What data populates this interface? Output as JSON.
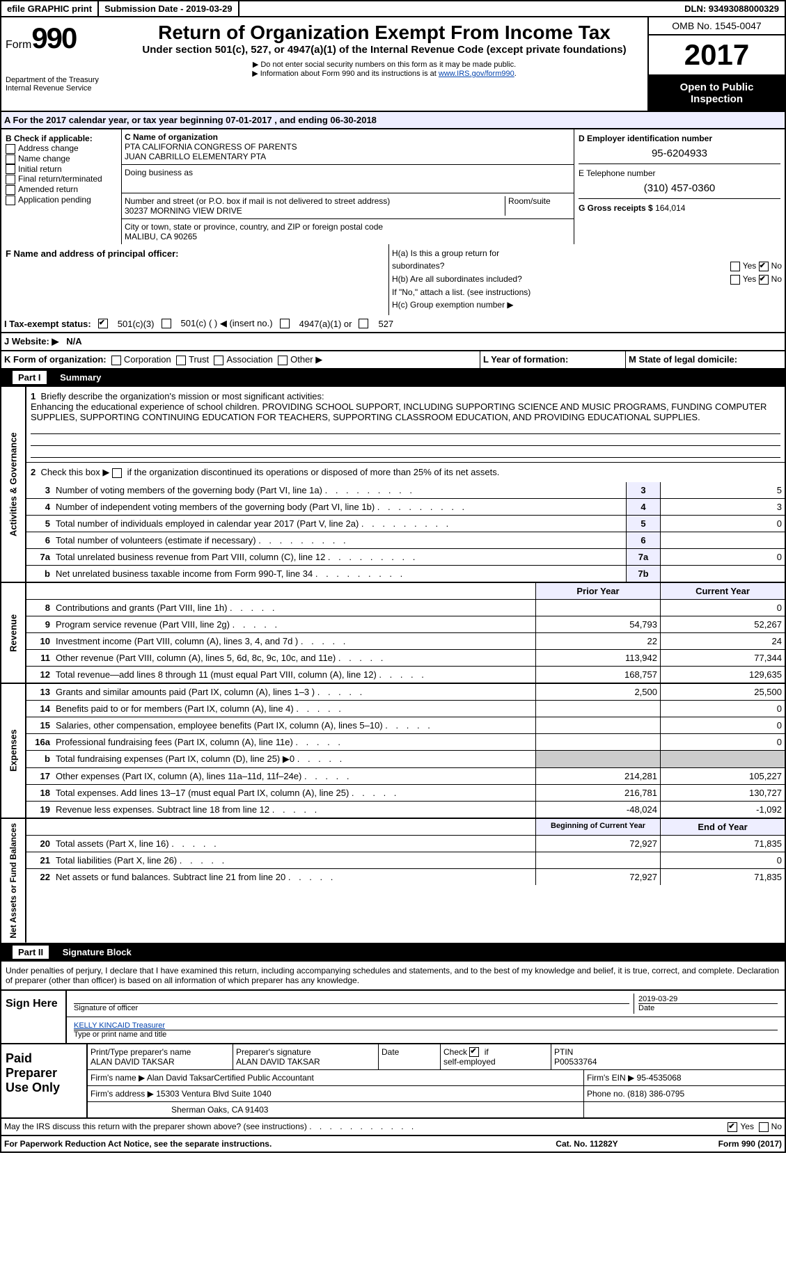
{
  "topbar": {
    "efile": "efile GRAPHIC print",
    "submission": "Submission Date - 2019-03-29",
    "dln": "DLN: 93493088000329"
  },
  "header": {
    "form": "Form",
    "num": "990",
    "dept": "Department of the Treasury",
    "irs": "Internal Revenue Service",
    "title": "Return of Organization Exempt From Income Tax",
    "subtitle": "Under section 501(c), 527, or 4947(a)(1) of the Internal Revenue Code (except private foundations)",
    "note1": "▶ Do not enter social security numbers on this form as it may be made public.",
    "note2": "▶ Information about Form 990 and its instructions is at ",
    "link": "www.IRS.gov/form990",
    "omb": "OMB No. 1545-0047",
    "year": "2017",
    "open": "Open to Public Inspection"
  },
  "sectionA": "A   For the 2017 calendar year, or tax year beginning 07-01-2017    , and ending 06-30-2018",
  "colB": {
    "label": "B Check if applicable:",
    "items": [
      "Address change",
      "Name change",
      "Initial return",
      "Final return/terminated",
      "Amended return",
      "Application pending"
    ]
  },
  "colC": {
    "nameLabel": "C Name of organization",
    "name1": "PTA CALIFORNIA CONGRESS OF PARENTS",
    "name2": "JUAN CABRILLO ELEMENTARY PTA",
    "dba": "Doing business as",
    "addrLabel": "Number and street (or P.O. box if mail is not delivered to street address)",
    "addr": "30237 MORNING VIEW DRIVE",
    "roomLabel": "Room/suite",
    "cityLabel": "City or town, state or province, country, and ZIP or foreign postal code",
    "city": "MALIBU, CA  90265"
  },
  "colD": {
    "einLabel": "D Employer identification number",
    "ein": "95-6204933",
    "telLabel": "E Telephone number",
    "tel": "(310) 457-0360",
    "grossLabel": "G Gross receipts $",
    "gross": "164,014"
  },
  "F": {
    "label": "F Name and address of principal officer:"
  },
  "H": {
    "a": "H(a)  Is this a group return for",
    "a2": "subordinates?",
    "b": "H(b)  Are all subordinates included?",
    "bnote": "If \"No,\" attach a list. (see instructions)",
    "c": "H(c)  Group exemption number ▶",
    "yes": "Yes",
    "no": "No"
  },
  "I": {
    "label": "I  Tax-exempt status:",
    "opts": [
      "501(c)(3)",
      "501(c) (   ) ◀ (insert no.)",
      "4947(a)(1) or",
      "527"
    ]
  },
  "J": {
    "label": "J  Website: ▶",
    "val": "N/A"
  },
  "K": {
    "label": "K Form of organization:",
    "opts": [
      "Corporation",
      "Trust",
      "Association",
      "Other ▶"
    ],
    "L": "L Year of formation:",
    "M": "M State of legal domicile:"
  },
  "part1": {
    "hdr": "Part I",
    "title": "Summary"
  },
  "sum1": {
    "sidelabel": "Activities & Governance",
    "l1": "Briefly describe the organization's mission or most significant activities:",
    "mission": "Enhancing the educational experience of school children. PROVIDING SCHOOL SUPPORT, INCLUDING SUPPORTING SCIENCE AND MUSIC PROGRAMS, FUNDING COMPUTER SUPPLIES, SUPPORTING CONTINUING EDUCATION FOR TEACHERS, SUPPORTING CLASSROOM EDUCATION, AND PROVIDING EDUCATIONAL SUPPLIES.",
    "l2": "Check this box ▶        if the organization discontinued its operations or disposed of more than 25% of its net assets.",
    "rows": [
      {
        "n": "3",
        "d": "Number of voting members of the governing body (Part VI, line 1a)",
        "lab": "3",
        "v": "5"
      },
      {
        "n": "4",
        "d": "Number of independent voting members of the governing body (Part VI, line 1b)",
        "lab": "4",
        "v": "3"
      },
      {
        "n": "5",
        "d": "Total number of individuals employed in calendar year 2017 (Part V, line 2a)",
        "lab": "5",
        "v": "0"
      },
      {
        "n": "6",
        "d": "Total number of volunteers (estimate if necessary)",
        "lab": "6",
        "v": ""
      },
      {
        "n": "7a",
        "d": "Total unrelated business revenue from Part VIII, column (C), line 12",
        "lab": "7a",
        "v": "0"
      },
      {
        "n": "b",
        "d": "Net unrelated business taxable income from Form 990-T, line 34",
        "lab": "7b",
        "v": ""
      }
    ]
  },
  "revenue": {
    "sidelabel": "Revenue",
    "header": {
      "py": "Prior Year",
      "cy": "Current Year"
    },
    "rows": [
      {
        "n": "8",
        "d": "Contributions and grants (Part VIII, line 1h)",
        "py": "",
        "cy": "0"
      },
      {
        "n": "9",
        "d": "Program service revenue (Part VIII, line 2g)",
        "py": "54,793",
        "cy": "52,267"
      },
      {
        "n": "10",
        "d": "Investment income (Part VIII, column (A), lines 3, 4, and 7d )",
        "py": "22",
        "cy": "24"
      },
      {
        "n": "11",
        "d": "Other revenue (Part VIII, column (A), lines 5, 6d, 8c, 9c, 10c, and 11e)",
        "py": "113,942",
        "cy": "77,344"
      },
      {
        "n": "12",
        "d": "Total revenue—add lines 8 through 11 (must equal Part VIII, column (A), line 12)",
        "py": "168,757",
        "cy": "129,635"
      }
    ]
  },
  "expenses": {
    "sidelabel": "Expenses",
    "rows": [
      {
        "n": "13",
        "d": "Grants and similar amounts paid (Part IX, column (A), lines 1–3 )",
        "py": "2,500",
        "cy": "25,500"
      },
      {
        "n": "14",
        "d": "Benefits paid to or for members (Part IX, column (A), line 4)",
        "py": "",
        "cy": "0"
      },
      {
        "n": "15",
        "d": "Salaries, other compensation, employee benefits (Part IX, column (A), lines 5–10)",
        "py": "",
        "cy": "0"
      },
      {
        "n": "16a",
        "d": "Professional fundraising fees (Part IX, column (A), line 11e)",
        "py": "",
        "cy": "0"
      },
      {
        "n": "b",
        "d": "Total fundraising expenses (Part IX, column (D), line 25) ▶0",
        "py": "__GRAY__",
        "cy": "__GRAY__"
      },
      {
        "n": "17",
        "d": "Other expenses (Part IX, column (A), lines 11a–11d, 11f–24e)",
        "py": "214,281",
        "cy": "105,227"
      },
      {
        "n": "18",
        "d": "Total expenses. Add lines 13–17 (must equal Part IX, column (A), line 25)",
        "py": "216,781",
        "cy": "130,727"
      },
      {
        "n": "19",
        "d": "Revenue less expenses. Subtract line 18 from line 12",
        "py": "-48,024",
        "cy": "-1,092"
      }
    ]
  },
  "netassets": {
    "sidelabel": "Net Assets or Fund Balances",
    "header": {
      "py": "Beginning of Current Year",
      "cy": "End of Year"
    },
    "rows": [
      {
        "n": "20",
        "d": "Total assets (Part X, line 16)",
        "py": "72,927",
        "cy": "71,835"
      },
      {
        "n": "21",
        "d": "Total liabilities (Part X, line 26)",
        "py": "",
        "cy": "0"
      },
      {
        "n": "22",
        "d": "Net assets or fund balances. Subtract line 21 from line 20",
        "py": "72,927",
        "cy": "71,835"
      }
    ]
  },
  "part2": {
    "hdr": "Part II",
    "title": "Signature Block"
  },
  "sig": {
    "text": "Under penalties of perjury, I declare that I have examined this return, including accompanying schedules and statements, and to the best of my knowledge and belief, it is true, correct, and complete. Declaration of preparer (other than officer) is based on all information of which preparer has any knowledge.",
    "signHere": "Sign Here",
    "sigLabel": "Signature of officer",
    "date": "2019-03-29",
    "dateLabel": "Date",
    "name": "KELLY KINCAID Treasurer",
    "nameLabel": "Type or print name and title"
  },
  "paid": {
    "label": "Paid Preparer Use Only",
    "r1": {
      "a": "Print/Type preparer's name",
      "av": "ALAN DAVID TAKSAR",
      "b": "Preparer's signature",
      "bv": "ALAN DAVID TAKSAR",
      "c": "Date",
      "d": "Check        if self-employed",
      "e": "PTIN",
      "ev": "P00533764"
    },
    "r2": {
      "a": "Firm's name      ▶",
      "av": "Alan David TaksarCertified Public Accountant",
      "b": "Firm's EIN ▶",
      "bv": "95-4535068"
    },
    "r3": {
      "a": "Firm's address ▶",
      "av": "15303 Ventura Blvd Suite 1040",
      "b": "Phone no.",
      "bv": "(818) 386-0795"
    },
    "r4": {
      "av": "Sherman Oaks, CA  91403"
    }
  },
  "discuss": {
    "q": "May the IRS discuss this return with the preparer shown above? (see instructions)",
    "yes": "Yes",
    "no": "No"
  },
  "bottom": {
    "a": "For Paperwork Reduction Act Notice, see the separate instructions.",
    "b": "Cat. No. 11282Y",
    "c": "Form 990 (2017)"
  }
}
